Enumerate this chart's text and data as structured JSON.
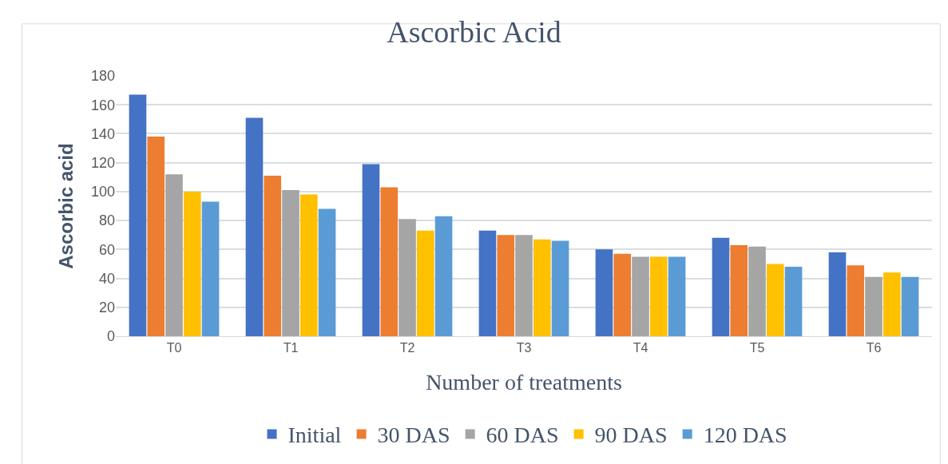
{
  "chart_data": {
    "type": "bar",
    "title": "Ascorbic Acid",
    "xlabel": "Number of treatments",
    "ylabel": "Ascorbic acid",
    "categories": [
      "T0",
      "T1",
      "T2",
      "T3",
      "T4",
      "T5",
      "T6"
    ],
    "series": [
      {
        "name": "Initial",
        "color": "#4472c4",
        "values": [
          167,
          151,
          119,
          73,
          60,
          68,
          58
        ]
      },
      {
        "name": "30 DAS",
        "color": "#ed7d31",
        "values": [
          138,
          111,
          103,
          70,
          57,
          63,
          49
        ]
      },
      {
        "name": "60 DAS",
        "color": "#a5a5a5",
        "values": [
          112,
          101,
          81,
          70,
          55,
          62,
          41
        ]
      },
      {
        "name": "90 DAS",
        "color": "#ffc000",
        "values": [
          100,
          98,
          73,
          67,
          55,
          50,
          44
        ]
      },
      {
        "name": "120 DAS",
        "color": "#5b9bd5",
        "values": [
          93,
          88,
          83,
          66,
          55,
          48,
          41
        ]
      }
    ],
    "ylim": [
      0,
      180
    ],
    "yticks": [
      0,
      20,
      40,
      60,
      80,
      100,
      120,
      140,
      160,
      180
    ],
    "grid": "y",
    "legend": "bottom"
  }
}
